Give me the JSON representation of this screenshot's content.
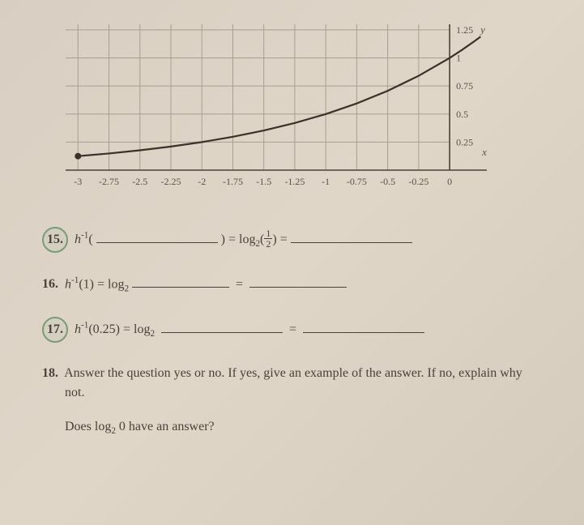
{
  "chart": {
    "type": "line",
    "x_ticks": [
      "-3",
      "-2.75",
      "-2.5",
      "-2.25",
      "-2",
      "-1.75",
      "-1.5",
      "-1.25",
      "-1",
      "-0.75",
      "-0.5",
      "-0.25",
      "0"
    ],
    "y_ticks": [
      "0.25",
      "0.5",
      "0.75",
      "1",
      "1.25"
    ],
    "y_axis_label": "y",
    "x_axis_label": "x",
    "curve_points": [
      [
        -3,
        0.125
      ],
      [
        -2.75,
        0.1487
      ],
      [
        -2.5,
        0.1768
      ],
      [
        -2.25,
        0.2102
      ],
      [
        -2,
        0.25
      ],
      [
        -1.75,
        0.2973
      ],
      [
        -1.5,
        0.3536
      ],
      [
        -1.25,
        0.4204
      ],
      [
        -1,
        0.5
      ],
      [
        -0.75,
        0.5946
      ],
      [
        -0.5,
        0.7071
      ],
      [
        -0.25,
        0.8409
      ],
      [
        0,
        1
      ],
      [
        0.1,
        1.072
      ],
      [
        0.2,
        1.149
      ],
      [
        0.25,
        1.19
      ]
    ],
    "endpoint_markers": [
      [
        -3,
        0.125
      ]
    ],
    "xlim": [
      -3.1,
      0.3
    ],
    "ylim": [
      0,
      1.3
    ],
    "grid_color": "#a89f91",
    "axis_color": "#4a4238",
    "tick_label_color": "#5a5248",
    "curve_color": "#3a3228",
    "background_color": "rgba(0,0,0,0)",
    "curve_width": 2.2,
    "tick_fontsize": 12
  },
  "q15": {
    "num": "15.",
    "lhs_func": "h",
    "lhs_exp": "-1",
    "mid": ") = log",
    "log_base": "2",
    "frac_num": "1",
    "frac_den": "2",
    "tail": ") ="
  },
  "q16": {
    "num": "16.",
    "lhs": "h",
    "exp": "-1",
    "arg": "(1) = log",
    "base": "2",
    "eq": "="
  },
  "q17": {
    "num": "17.",
    "lhs": "h",
    "exp": "-1",
    "arg": "(0.25) = log",
    "base": "2",
    "eq": "="
  },
  "q18": {
    "num": "18.",
    "line1": "Answer the question yes or no. If yes, give an example of the answer. If no, explain why",
    "line1b": "not.",
    "line2_a": "Does log",
    "line2_base": "2",
    "line2_b": " 0 have an answer?"
  }
}
